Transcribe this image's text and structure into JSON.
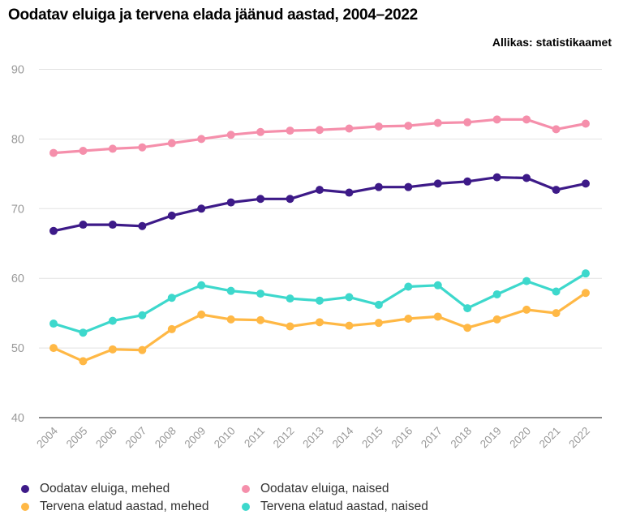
{
  "chart_data": {
    "type": "line",
    "title": "Oodatav eluiga ja tervena elada jäänud aastad, 2004–2022",
    "source": "Allikas: statistikaamet",
    "xlabel": "",
    "ylabel": "",
    "x": [
      "2004",
      "2005",
      "2006",
      "2007",
      "2008",
      "2009",
      "2010",
      "2011",
      "2012",
      "2013",
      "2014",
      "2015",
      "2016",
      "2017",
      "2018",
      "2019",
      "2020",
      "2021",
      "2022"
    ],
    "ylim": [
      40,
      90
    ],
    "yticks": [
      40,
      50,
      60,
      70,
      80,
      90
    ],
    "grid": true,
    "legend_position": "bottom",
    "series": [
      {
        "name": "Oodatav eluiga, mehed",
        "color": "#3d1a88",
        "values": [
          66.8,
          67.7,
          67.7,
          67.5,
          69.0,
          70.0,
          70.9,
          71.4,
          71.4,
          72.7,
          72.3,
          73.1,
          73.1,
          73.6,
          73.9,
          74.5,
          74.4,
          72.7,
          73.6
        ]
      },
      {
        "name": "Oodatav eluiga, naised",
        "color": "#f58fab",
        "values": [
          78.0,
          78.3,
          78.6,
          78.8,
          79.4,
          80.0,
          80.6,
          81.0,
          81.2,
          81.3,
          81.5,
          81.8,
          81.9,
          82.3,
          82.4,
          82.8,
          82.8,
          81.4,
          82.2
        ]
      },
      {
        "name": "Tervena elatud aastad, mehed",
        "color": "#ffb845",
        "values": [
          50.0,
          48.1,
          49.8,
          49.7,
          52.7,
          54.8,
          54.1,
          54.0,
          53.1,
          53.7,
          53.2,
          53.6,
          54.2,
          54.5,
          52.9,
          54.1,
          55.5,
          55.0,
          57.9
        ]
      },
      {
        "name": "Tervena elatud aastad, naised",
        "color": "#3dd8cc",
        "values": [
          53.5,
          52.2,
          53.9,
          54.7,
          57.2,
          59.0,
          58.2,
          57.8,
          57.1,
          56.8,
          57.3,
          56.2,
          58.8,
          59.0,
          55.7,
          57.7,
          59.6,
          58.1,
          60.7
        ]
      }
    ]
  }
}
